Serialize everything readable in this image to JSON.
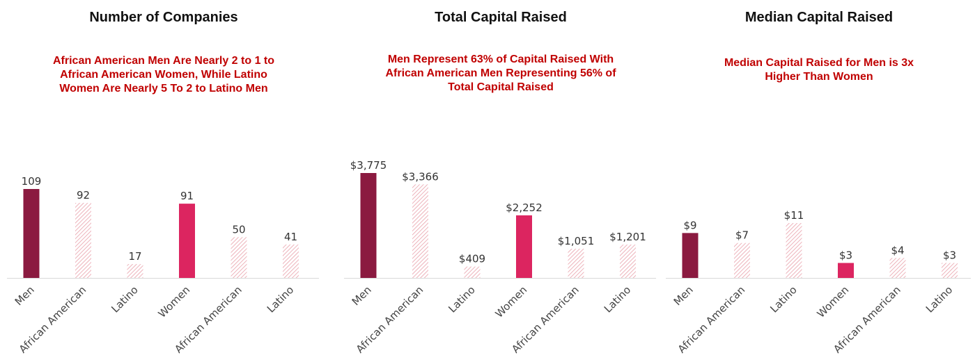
{
  "colors": {
    "men_solid": "#8b1a40",
    "women_solid": "#dc2560",
    "hatch": "#e9a0aa",
    "subtitle": "#c00000",
    "axis": "#d9d9d9"
  },
  "chart_data": [
    {
      "type": "bar",
      "title": "Number of Companies",
      "subtitle": [
        "African American Men Are Nearly 2 to 1 to",
        "African American Women, While Latino",
        "Women Are Nearly 5 To 2 to Latino Men"
      ],
      "categories": [
        "Men",
        "African American",
        "Latino",
        "Women",
        "African American",
        "Latino"
      ],
      "values": [
        109,
        92,
        17,
        91,
        50,
        41
      ],
      "labels": [
        "109",
        "92",
        "17",
        "91",
        "50",
        "41"
      ],
      "styles": [
        "men",
        "hatch",
        "hatch",
        "women",
        "hatch",
        "hatch"
      ],
      "ylim": [
        0,
        109
      ]
    },
    {
      "type": "bar",
      "title": "Total Capital Raised",
      "subtitle": [
        "Men Represent  63% of Capital Raised With",
        "African American Men Representing 56% of",
        "Total Capital Raised"
      ],
      "categories": [
        "Men",
        "African American",
        "Latino",
        "Women",
        "African American",
        "Latino"
      ],
      "values": [
        3775,
        3366,
        409,
        2252,
        1051,
        1201
      ],
      "labels": [
        "$3,775",
        "$3,366",
        "$409",
        "$2,252",
        "$1,051",
        "$1,201"
      ],
      "styles": [
        "men",
        "hatch",
        "hatch",
        "women",
        "hatch",
        "hatch"
      ],
      "ylim": [
        0,
        3775
      ]
    },
    {
      "type": "bar",
      "title": "Median Capital Raised",
      "subtitle": [
        "Median Capital Raised for Men is 3x",
        "Higher Than Women"
      ],
      "categories": [
        "Men",
        "African American",
        "Latino",
        "Women",
        "African American",
        "Latino"
      ],
      "values": [
        9,
        7,
        11,
        3,
        4,
        3
      ],
      "labels": [
        "$9",
        "$7",
        "$11",
        "$3",
        "$4",
        "$3"
      ],
      "styles": [
        "men",
        "hatch",
        "hatch",
        "women",
        "hatch",
        "hatch"
      ],
      "ylim": [
        0,
        11
      ]
    }
  ]
}
